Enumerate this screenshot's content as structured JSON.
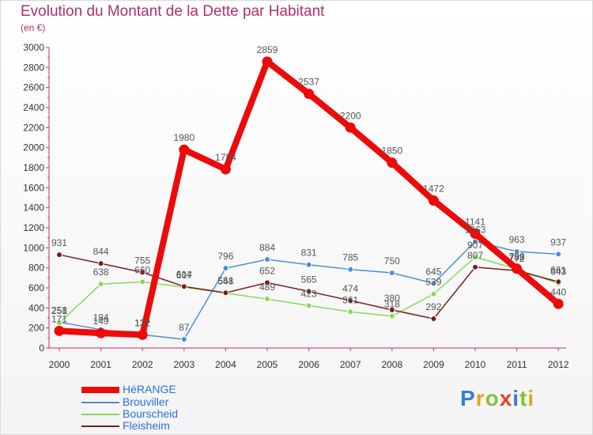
{
  "title": "Evolution du Montant de la Dette par Habitant",
  "subtitle": "(en €)",
  "logo": {
    "text": "Proxiti",
    "letter_colors": [
      "#2f7fd6",
      "#e8a21a",
      "#8cbf3f",
      "#e0452c",
      "#2f7fd6",
      "#8cbf3f",
      "#e8a21a"
    ]
  },
  "chart_data": {
    "type": "line",
    "title": "Evolution du Montant de la Dette par Habitant",
    "subtitle": "(en €)",
    "xlabel": "",
    "ylabel": "",
    "ylim": [
      0,
      3000
    ],
    "yticks": [
      0,
      200,
      400,
      600,
      800,
      1000,
      1200,
      1400,
      1600,
      1800,
      2000,
      2200,
      2400,
      2600,
      2800,
      3000
    ],
    "x": [
      "2000",
      "2001",
      "2002",
      "2003",
      "2004",
      "2005",
      "2006",
      "2007",
      "2008",
      "2009",
      "2010",
      "2011",
      "2012"
    ],
    "grid": false,
    "legend_position": "bottom-left",
    "series": [
      {
        "name": "Brouviller",
        "color": "#4a8fd4",
        "values": [
          258,
          184,
          132,
          87,
          796,
          884,
          831,
          785,
          750,
          645,
          1063,
          963,
          937
        ],
        "labels": [
          "258",
          "184",
          "132",
          "87",
          "796",
          "884",
          "831",
          "785",
          "750",
          "645",
          "1063",
          "963",
          "937"
        ]
      },
      {
        "name": "Bourscheid",
        "color": "#88d85a",
        "values": [
          251,
          638,
          660,
          607,
          548,
          489,
          423,
          361,
          318,
          539,
          907,
          789,
          643
        ],
        "labels": [
          "251",
          "638",
          "660",
          "607",
          "548",
          "489",
          "423",
          "361",
          "318",
          "539",
          "907",
          "789",
          "643"
        ]
      },
      {
        "name": "Fleisheim",
        "color": "#7a1c1c",
        "values": [
          931,
          844,
          755,
          614,
          551,
          652,
          565,
          474,
          380,
          292,
          807,
          772,
          661
        ],
        "labels": [
          "931",
          "844",
          "755",
          "614",
          "551",
          "652",
          "565",
          "474",
          "380",
          "292",
          "807",
          "772",
          "661"
        ]
      },
      {
        "name": "HéRANGE",
        "color": "#ee0a0a",
        "values": [
          171,
          149,
          132,
          1980,
          1784,
          2859,
          2537,
          2200,
          1850,
          1472,
          1141,
          792,
          440
        ],
        "labels": [
          "171",
          "149",
          "132",
          "1980",
          "1784",
          "2859",
          "2537",
          "2200",
          "1850",
          "1472",
          "1141",
          "792",
          "440"
        ]
      }
    ],
    "legend_order": [
      "HéRANGE",
      "Brouviller",
      "Bourscheid",
      "Fleisheim"
    ]
  }
}
